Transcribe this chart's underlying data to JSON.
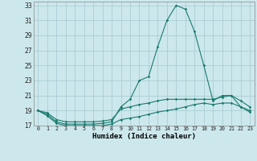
{
  "background_color": "#cce8ec",
  "grid_color": "#aacdd4",
  "line_color": "#1a7a6e",
  "xlabel": "Humidex (Indice chaleur)",
  "x": [
    0,
    1,
    2,
    3,
    4,
    5,
    6,
    7,
    8,
    9,
    10,
    11,
    12,
    13,
    14,
    15,
    16,
    17,
    18,
    19,
    20,
    21,
    22,
    23
  ],
  "line_main": [
    19.0,
    18.5,
    17.5,
    17.2,
    17.2,
    17.2,
    17.2,
    17.3,
    17.5,
    19.5,
    20.5,
    23.0,
    23.5,
    27.5,
    31.0,
    33.0,
    32.5,
    29.5,
    25.0,
    20.3,
    21.0,
    21.0,
    19.5,
    19.0
  ],
  "line_upper": [
    19.0,
    18.7,
    17.8,
    17.5,
    17.5,
    17.5,
    17.5,
    17.6,
    17.8,
    19.2,
    19.5,
    19.8,
    20.0,
    20.3,
    20.5,
    20.5,
    20.5,
    20.5,
    20.5,
    20.5,
    20.8,
    21.0,
    20.3,
    19.5
  ],
  "line_lower": [
    19.0,
    18.3,
    17.3,
    17.0,
    17.0,
    17.0,
    17.0,
    17.0,
    17.2,
    17.8,
    18.0,
    18.2,
    18.5,
    18.8,
    19.0,
    19.2,
    19.5,
    19.8,
    20.0,
    19.8,
    20.0,
    20.0,
    19.5,
    18.8
  ],
  "ylim": [
    17,
    33
  ],
  "yticks": [
    17,
    19,
    21,
    23,
    25,
    27,
    29,
    31,
    33
  ],
  "xlim": [
    0,
    23
  ]
}
